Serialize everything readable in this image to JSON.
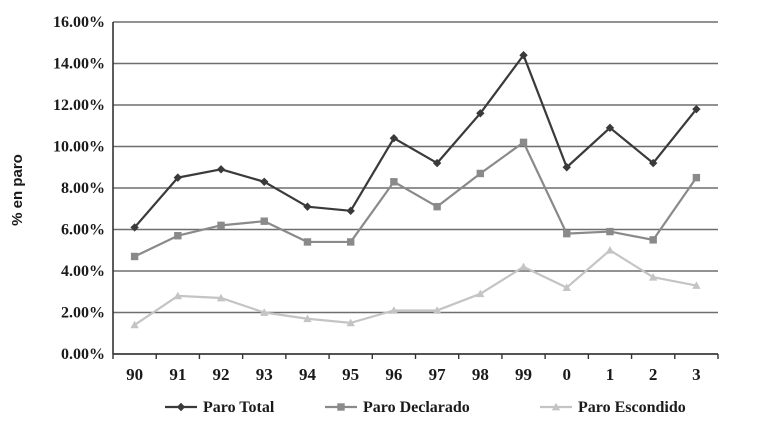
{
  "chart_data": {
    "type": "line",
    "title": "",
    "xlabel": "",
    "ylabel": "% en paro",
    "categories": [
      "90",
      "91",
      "92",
      "93",
      "94",
      "95",
      "96",
      "97",
      "98",
      "99",
      "0",
      "1",
      "2",
      "3"
    ],
    "ylim": [
      0,
      16
    ],
    "yticks": [
      "0.00%",
      "2.00%",
      "4.00%",
      "6.00%",
      "8.00%",
      "10.00%",
      "12.00%",
      "14.00%",
      "16.00%"
    ],
    "grid": true,
    "legend_position": "bottom",
    "series": [
      {
        "name": "Paro Total",
        "color": "#3a3a3a",
        "marker": "diamond",
        "values": [
          6.1,
          8.5,
          8.9,
          8.3,
          7.1,
          6.9,
          10.4,
          9.2,
          11.6,
          14.4,
          9.0,
          10.9,
          9.2,
          11.8
        ]
      },
      {
        "name": "Paro Declarado",
        "color": "#8a8a8a",
        "marker": "square",
        "values": [
          4.7,
          5.7,
          6.2,
          6.4,
          5.4,
          5.4,
          8.3,
          7.1,
          8.7,
          10.2,
          5.8,
          5.9,
          5.5,
          8.5
        ]
      },
      {
        "name": "Paro Escondido",
        "color": "#c4c4c4",
        "marker": "triangle",
        "values": [
          1.4,
          2.8,
          2.7,
          2.0,
          1.7,
          1.5,
          2.1,
          2.1,
          2.9,
          4.2,
          3.2,
          5.0,
          3.7,
          3.3
        ]
      }
    ]
  }
}
